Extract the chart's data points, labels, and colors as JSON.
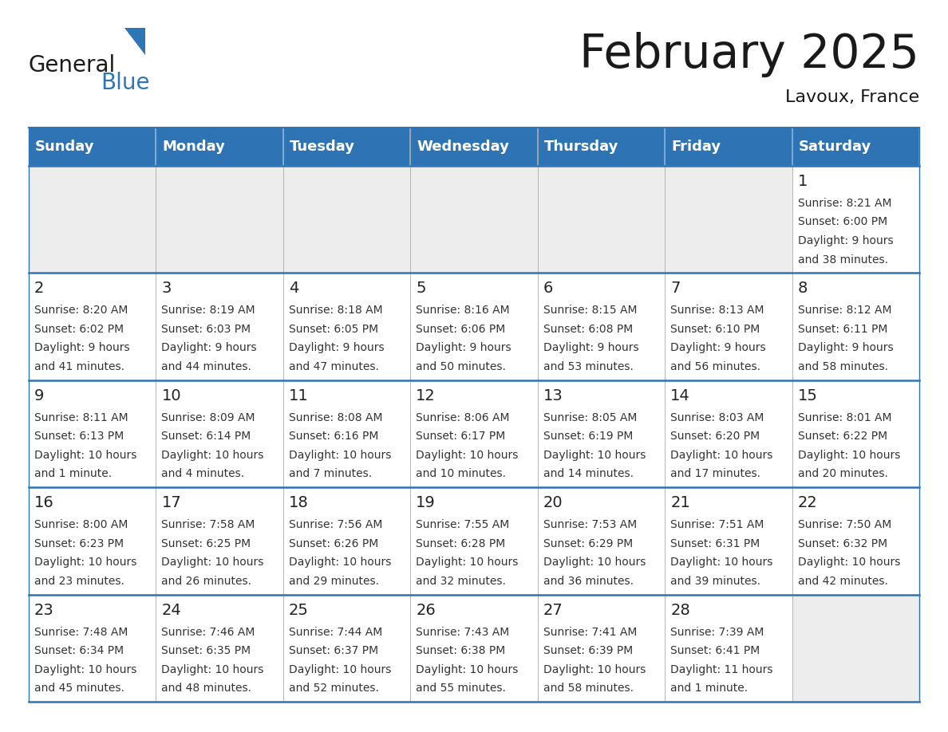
{
  "title": "February 2025",
  "subtitle": "Lavoux, France",
  "header_bg": "#2E74B5",
  "header_text_color": "#FFFFFF",
  "day_names": [
    "Sunday",
    "Monday",
    "Tuesday",
    "Wednesday",
    "Thursday",
    "Friday",
    "Saturday"
  ],
  "row_bg_light": "#EDEDED",
  "row_bg_white": "#FFFFFF",
  "cell_text_color": "#333333",
  "day_number_color": "#222222",
  "divider_color": "#2E74B5",
  "outer_border_color": "#2E74B5",
  "calendar_data": [
    [
      {
        "day": "",
        "sunrise": "",
        "sunset": "",
        "daylight": ""
      },
      {
        "day": "",
        "sunrise": "",
        "sunset": "",
        "daylight": ""
      },
      {
        "day": "",
        "sunrise": "",
        "sunset": "",
        "daylight": ""
      },
      {
        "day": "",
        "sunrise": "",
        "sunset": "",
        "daylight": ""
      },
      {
        "day": "",
        "sunrise": "",
        "sunset": "",
        "daylight": ""
      },
      {
        "day": "",
        "sunrise": "",
        "sunset": "",
        "daylight": ""
      },
      {
        "day": "1",
        "sunrise": "8:21 AM",
        "sunset": "6:00 PM",
        "daylight": "9 hours and 38 minutes."
      }
    ],
    [
      {
        "day": "2",
        "sunrise": "8:20 AM",
        "sunset": "6:02 PM",
        "daylight": "9 hours and 41 minutes."
      },
      {
        "day": "3",
        "sunrise": "8:19 AM",
        "sunset": "6:03 PM",
        "daylight": "9 hours and 44 minutes."
      },
      {
        "day": "4",
        "sunrise": "8:18 AM",
        "sunset": "6:05 PM",
        "daylight": "9 hours and 47 minutes."
      },
      {
        "day": "5",
        "sunrise": "8:16 AM",
        "sunset": "6:06 PM",
        "daylight": "9 hours and 50 minutes."
      },
      {
        "day": "6",
        "sunrise": "8:15 AM",
        "sunset": "6:08 PM",
        "daylight": "9 hours and 53 minutes."
      },
      {
        "day": "7",
        "sunrise": "8:13 AM",
        "sunset": "6:10 PM",
        "daylight": "9 hours and 56 minutes."
      },
      {
        "day": "8",
        "sunrise": "8:12 AM",
        "sunset": "6:11 PM",
        "daylight": "9 hours and 58 minutes."
      }
    ],
    [
      {
        "day": "9",
        "sunrise": "8:11 AM",
        "sunset": "6:13 PM",
        "daylight": "10 hours and 1 minute."
      },
      {
        "day": "10",
        "sunrise": "8:09 AM",
        "sunset": "6:14 PM",
        "daylight": "10 hours and 4 minutes."
      },
      {
        "day": "11",
        "sunrise": "8:08 AM",
        "sunset": "6:16 PM",
        "daylight": "10 hours and 7 minutes."
      },
      {
        "day": "12",
        "sunrise": "8:06 AM",
        "sunset": "6:17 PM",
        "daylight": "10 hours and 10 minutes."
      },
      {
        "day": "13",
        "sunrise": "8:05 AM",
        "sunset": "6:19 PM",
        "daylight": "10 hours and 14 minutes."
      },
      {
        "day": "14",
        "sunrise": "8:03 AM",
        "sunset": "6:20 PM",
        "daylight": "10 hours and 17 minutes."
      },
      {
        "day": "15",
        "sunrise": "8:01 AM",
        "sunset": "6:22 PM",
        "daylight": "10 hours and 20 minutes."
      }
    ],
    [
      {
        "day": "16",
        "sunrise": "8:00 AM",
        "sunset": "6:23 PM",
        "daylight": "10 hours and 23 minutes."
      },
      {
        "day": "17",
        "sunrise": "7:58 AM",
        "sunset": "6:25 PM",
        "daylight": "10 hours and 26 minutes."
      },
      {
        "day": "18",
        "sunrise": "7:56 AM",
        "sunset": "6:26 PM",
        "daylight": "10 hours and 29 minutes."
      },
      {
        "day": "19",
        "sunrise": "7:55 AM",
        "sunset": "6:28 PM",
        "daylight": "10 hours and 32 minutes."
      },
      {
        "day": "20",
        "sunrise": "7:53 AM",
        "sunset": "6:29 PM",
        "daylight": "10 hours and 36 minutes."
      },
      {
        "day": "21",
        "sunrise": "7:51 AM",
        "sunset": "6:31 PM",
        "daylight": "10 hours and 39 minutes."
      },
      {
        "day": "22",
        "sunrise": "7:50 AM",
        "sunset": "6:32 PM",
        "daylight": "10 hours and 42 minutes."
      }
    ],
    [
      {
        "day": "23",
        "sunrise": "7:48 AM",
        "sunset": "6:34 PM",
        "daylight": "10 hours and 45 minutes."
      },
      {
        "day": "24",
        "sunrise": "7:46 AM",
        "sunset": "6:35 PM",
        "daylight": "10 hours and 48 minutes."
      },
      {
        "day": "25",
        "sunrise": "7:44 AM",
        "sunset": "6:37 PM",
        "daylight": "10 hours and 52 minutes."
      },
      {
        "day": "26",
        "sunrise": "7:43 AM",
        "sunset": "6:38 PM",
        "daylight": "10 hours and 55 minutes."
      },
      {
        "day": "27",
        "sunrise": "7:41 AM",
        "sunset": "6:39 PM",
        "daylight": "10 hours and 58 minutes."
      },
      {
        "day": "28",
        "sunrise": "7:39 AM",
        "sunset": "6:41 PM",
        "daylight": "11 hours and 1 minute."
      },
      {
        "day": "",
        "sunrise": "",
        "sunset": "",
        "daylight": ""
      }
    ]
  ],
  "logo_general_color": "#1a1a1a",
  "logo_blue_color": "#2e75b6",
  "title_fontsize": 42,
  "subtitle_fontsize": 16,
  "header_fontsize": 13,
  "day_num_fontsize": 14,
  "cell_fontsize": 10
}
